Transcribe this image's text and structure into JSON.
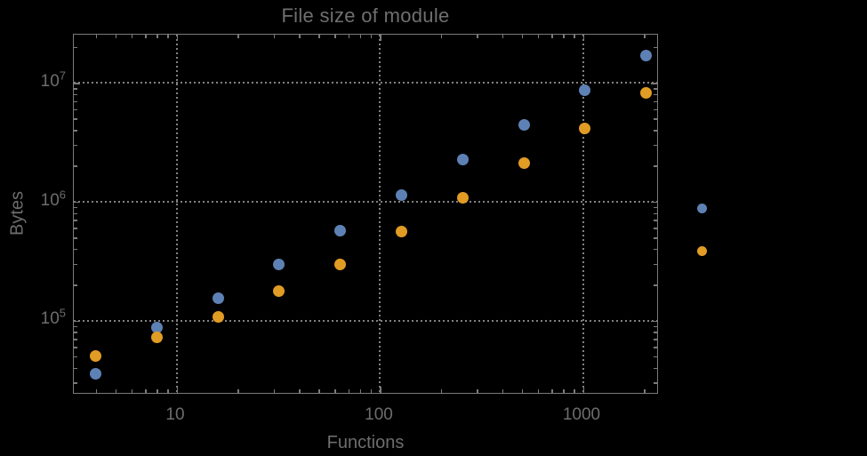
{
  "page": {
    "background_color": "#000000",
    "text_color": "#6d6d6d",
    "frame_color": "#7a7a7a",
    "grid_color": "#828282"
  },
  "chart_data": {
    "type": "scatter",
    "title": "File size of module",
    "xlabel": "Functions",
    "ylabel": "Bytes",
    "x_scale": "log",
    "y_scale": "log",
    "grid": "dotted lines at decade ticks, frame ticks on all sides",
    "legend_position": "right of frame, markers only, no visible labels",
    "xlim": [
      3.2,
      2390
    ],
    "ylim": [
      22700,
      25400000
    ],
    "x_ticks": [
      {
        "value": 10,
        "label": "10"
      },
      {
        "value": 100,
        "label": "100"
      },
      {
        "value": 1000,
        "label": "1000"
      }
    ],
    "y_ticks": [
      {
        "value": 100000,
        "base": "10",
        "exp": "5"
      },
      {
        "value": 1000000,
        "base": "10",
        "exp": "6"
      },
      {
        "value": 10000000,
        "base": "10",
        "exp": "7"
      }
    ],
    "x": [
      4,
      8,
      16,
      32,
      64,
      128,
      256,
      512,
      1024,
      2048
    ],
    "series": [
      {
        "name": "series-blue",
        "color": "#5E81B5",
        "values": [
          35500,
          87000,
          155000,
          295000,
          570000,
          1130000,
          2240000,
          4400000,
          8600000,
          17000000
        ]
      },
      {
        "name": "series-orange",
        "color": "#E19C24",
        "values": [
          50000,
          72000,
          108000,
          175000,
          295000,
          560000,
          1080000,
          2100000,
          4100000,
          8200000
        ]
      }
    ],
    "legend": {
      "labels_visible": false,
      "markers": [
        {
          "name": "legend-marker-blue",
          "color": "#5E81B5"
        },
        {
          "name": "legend-marker-orange",
          "color": "#E19C24"
        }
      ]
    }
  }
}
